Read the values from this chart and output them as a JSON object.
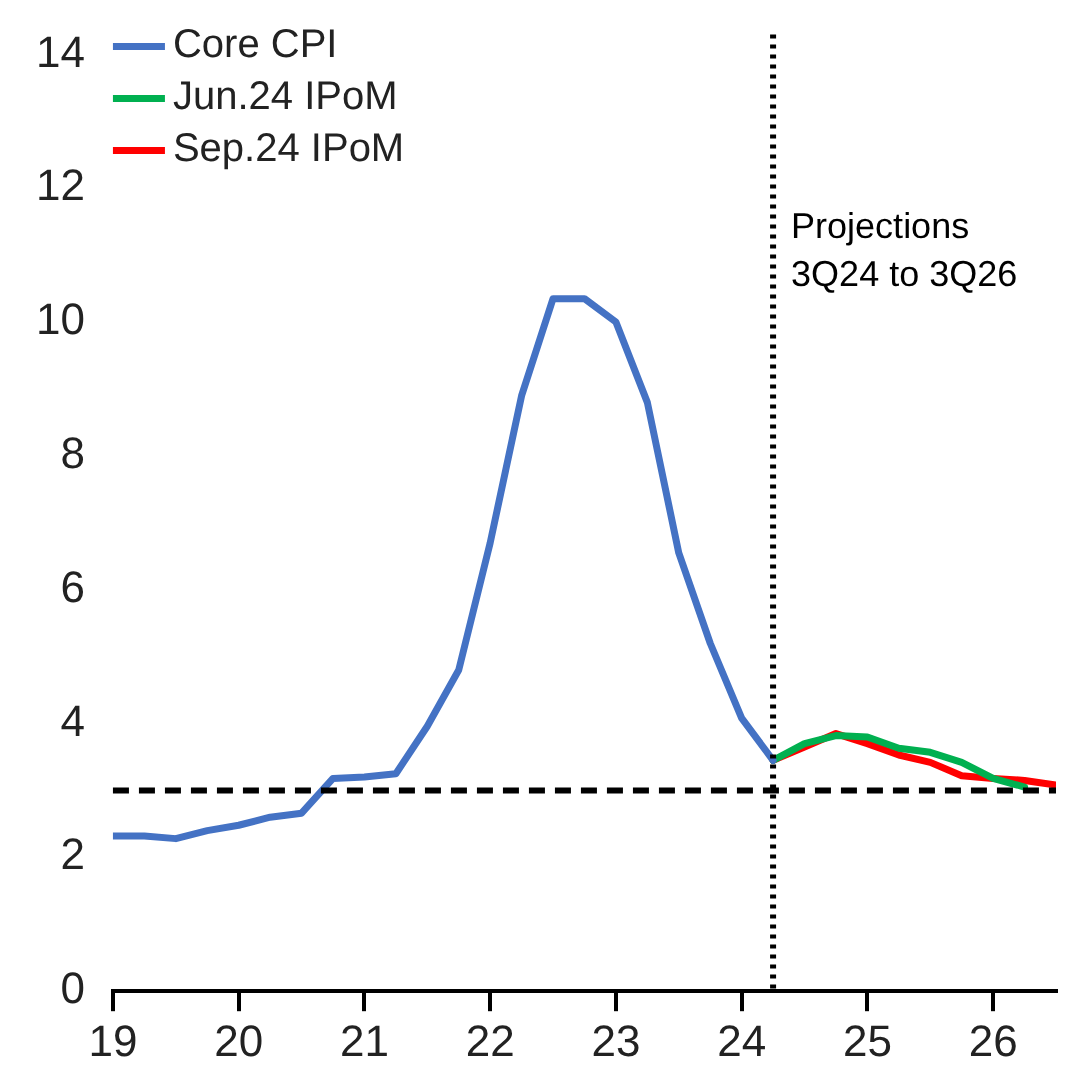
{
  "chart_data": {
    "type": "line",
    "xlim": [
      19,
      26.5
    ],
    "xticks": [
      19,
      20,
      21,
      22,
      23,
      24,
      25,
      26
    ],
    "ylim": [
      0,
      14
    ],
    "yticks": [
      0,
      2,
      4,
      6,
      8,
      10,
      12,
      14
    ],
    "grid": false,
    "legend": "top left",
    "marker": "none",
    "line_style": "solid",
    "series": [
      {
        "name": "Core CPI",
        "color": "#4472c4",
        "x": [
          19,
          19.25,
          19.5,
          19.75,
          20,
          20.25,
          20.5,
          20.75,
          21,
          21.25,
          21.5,
          21.75,
          22,
          22.25,
          22.5,
          22.75,
          23,
          23.25,
          23.5,
          23.75,
          24,
          24.25
        ],
        "values": [
          2.32,
          2.32,
          2.28,
          2.4,
          2.48,
          2.6,
          2.66,
          3.18,
          3.2,
          3.25,
          3.96,
          4.8,
          6.7,
          8.9,
          10.35,
          10.35,
          10,
          8.8,
          6.55,
          5.2,
          4.08,
          3.45
        ]
      },
      {
        "name": "Jun.24 IPoM",
        "color": "#00b050",
        "x": [
          24.25,
          24.5,
          24.75,
          25,
          25.25,
          25.5,
          25.75,
          26,
          26.25
        ],
        "values": [
          3.45,
          3.7,
          3.82,
          3.8,
          3.63,
          3.57,
          3.42,
          3.18,
          3.05
        ]
      },
      {
        "name": "Sep.24 IPoM",
        "color": "#ff0000",
        "x": [
          24.25,
          24.5,
          24.75,
          25,
          25.25,
          25.5,
          25.75,
          26,
          26.25,
          26.5
        ],
        "values": [
          3.45,
          3.65,
          3.85,
          3.7,
          3.53,
          3.42,
          3.22,
          3.18,
          3.15,
          3.08
        ]
      }
    ],
    "ref_lines": [
      {
        "axis": "y",
        "value": 3,
        "color": "#000000",
        "line_style": "dashed"
      },
      {
        "axis": "x",
        "value": 24.25,
        "color": "#000000",
        "line_style": "dotted"
      }
    ],
    "annotations": [
      "Projections\n3Q24 to 3Q26"
    ]
  }
}
